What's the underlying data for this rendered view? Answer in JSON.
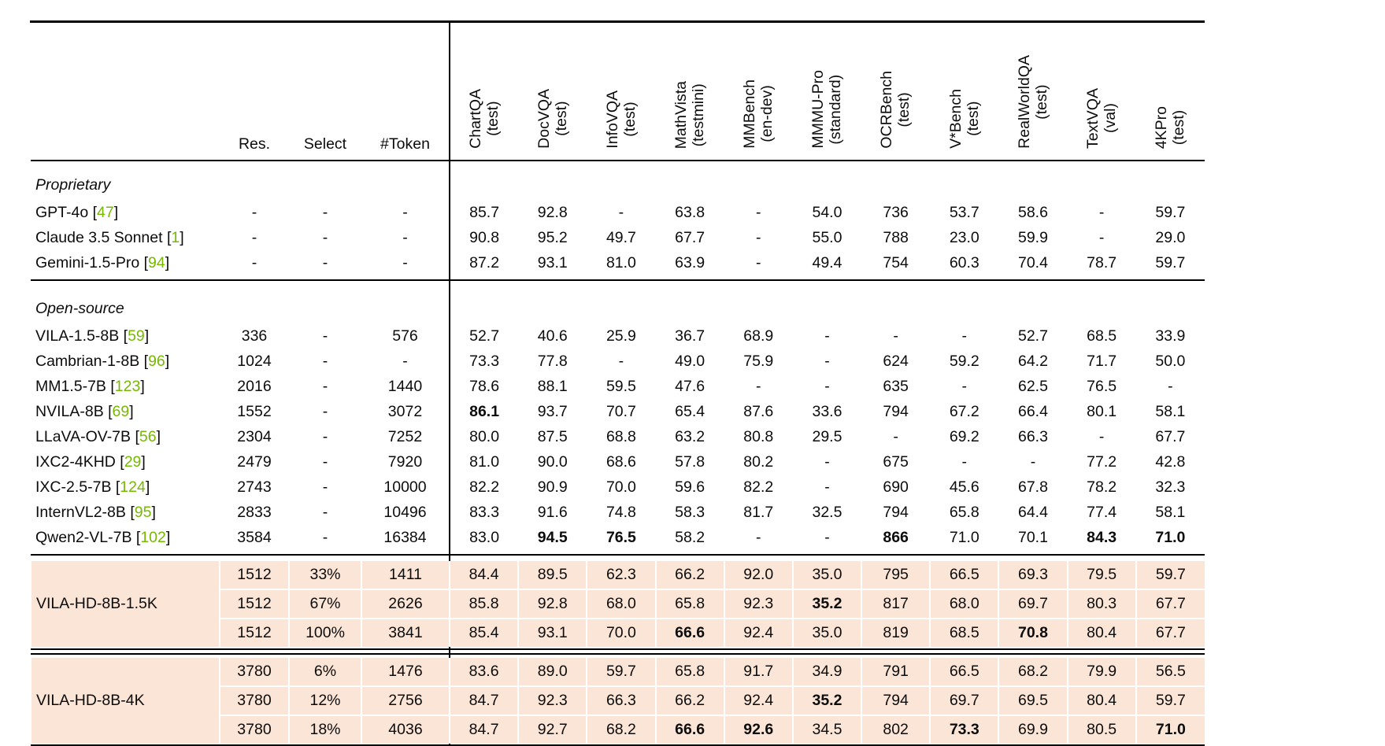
{
  "table": {
    "colors": {
      "citation_green": "#76b900",
      "row_highlight": "#fbe5d6"
    },
    "left_headers": [
      "Res.",
      "Select",
      "#Token"
    ],
    "benchmarks": [
      {
        "name": "ChartQA",
        "split": "(test)"
      },
      {
        "name": "DocVQA",
        "split": "(test)"
      },
      {
        "name": "InfoVQA",
        "split": "(test)"
      },
      {
        "name": "MathVista",
        "split": "(testmini)"
      },
      {
        "name": "MMBench",
        "split": "(en-dev)"
      },
      {
        "name": "MMMU-Pro",
        "split": "(standard)"
      },
      {
        "name": "OCRBench",
        "split": "(test)"
      },
      {
        "name": "V*Bench",
        "split": "(test)"
      },
      {
        "name": "RealWorldQA",
        "split": "(test)"
      },
      {
        "name": "TextVQA",
        "split": "(val)"
      },
      {
        "name": "4KPro",
        "split": "(test)"
      }
    ],
    "sections": [
      {
        "label": "Proprietary",
        "rows": [
          {
            "name": "GPT-4o",
            "ref": "47",
            "res": "-",
            "select": "-",
            "token": "-",
            "scores": [
              "85.7",
              "92.8",
              "-",
              "63.8",
              "-",
              "54.0",
              "736",
              "53.7",
              "58.6",
              "-",
              "59.7"
            ],
            "bold": []
          },
          {
            "name": "Claude 3.5 Sonnet",
            "ref": "1",
            "res": "-",
            "select": "-",
            "token": "-",
            "scores": [
              "90.8",
              "95.2",
              "49.7",
              "67.7",
              "-",
              "55.0",
              "788",
              "23.0",
              "59.9",
              "-",
              "29.0"
            ],
            "bold": []
          },
          {
            "name": "Gemini-1.5-Pro",
            "ref": "94",
            "res": "-",
            "select": "-",
            "token": "-",
            "scores": [
              "87.2",
              "93.1",
              "81.0",
              "63.9",
              "-",
              "49.4",
              "754",
              "60.3",
              "70.4",
              "78.7",
              "59.7"
            ],
            "bold": []
          }
        ]
      },
      {
        "label": "Open-source",
        "rows": [
          {
            "name": "VILA-1.5-8B",
            "ref": "59",
            "res": "336",
            "select": "-",
            "token": "576",
            "scores": [
              "52.7",
              "40.6",
              "25.9",
              "36.7",
              "68.9",
              "-",
              "-",
              "-",
              "52.7",
              "68.5",
              "33.9"
            ],
            "bold": []
          },
          {
            "name": "Cambrian-1-8B",
            "ref": "96",
            "res": "1024",
            "select": "-",
            "token": "-",
            "scores": [
              "73.3",
              "77.8",
              "-",
              "49.0",
              "75.9",
              "-",
              "624",
              "59.2",
              "64.2",
              "71.7",
              "50.0"
            ],
            "bold": []
          },
          {
            "name": "MM1.5-7B",
            "ref": "123",
            "res": "2016",
            "select": "-",
            "token": "1440",
            "scores": [
              "78.6",
              "88.1",
              "59.5",
              "47.6",
              "-",
              "-",
              "635",
              "-",
              "62.5",
              "76.5",
              "-"
            ],
            "bold": []
          },
          {
            "name": "NVILA-8B",
            "ref": "69",
            "res": "1552",
            "select": "-",
            "token": "3072",
            "scores": [
              "86.1",
              "93.7",
              "70.7",
              "65.4",
              "87.6",
              "33.6",
              "794",
              "67.2",
              "66.4",
              "80.1",
              "58.1"
            ],
            "bold": [
              0
            ]
          },
          {
            "name": "LLaVA-OV-7B",
            "ref": "56",
            "res": "2304",
            "select": "-",
            "token": "7252",
            "scores": [
              "80.0",
              "87.5",
              "68.8",
              "63.2",
              "80.8",
              "29.5",
              "-",
              "69.2",
              "66.3",
              "-",
              "67.7"
            ],
            "bold": []
          },
          {
            "name": "IXC2-4KHD",
            "ref": "29",
            "res": "2479",
            "select": "-",
            "token": "7920",
            "scores": [
              "81.0",
              "90.0",
              "68.6",
              "57.8",
              "80.2",
              "-",
              "675",
              "-",
              "-",
              "77.2",
              "42.8"
            ],
            "bold": []
          },
          {
            "name": "IXC-2.5-7B",
            "ref": "124",
            "res": "2743",
            "select": "-",
            "token": "10000",
            "scores": [
              "82.2",
              "90.9",
              "70.0",
              "59.6",
              "82.2",
              "-",
              "690",
              "45.6",
              "67.8",
              "78.2",
              "32.3"
            ],
            "bold": []
          },
          {
            "name": "InternVL2-8B",
            "ref": "95",
            "res": "2833",
            "select": "-",
            "token": "10496",
            "scores": [
              "83.3",
              "91.6",
              "74.8",
              "58.3",
              "81.7",
              "32.5",
              "794",
              "65.8",
              "64.4",
              "77.4",
              "58.1"
            ],
            "bold": []
          },
          {
            "name": "Qwen2-VL-7B",
            "ref": "102",
            "res": "3584",
            "select": "-",
            "token": "16384",
            "scores": [
              "83.0",
              "94.5",
              "76.5",
              "58.2",
              "-",
              "-",
              "866",
              "71.0",
              "70.1",
              "84.3",
              "71.0"
            ],
            "bold": [
              1,
              2,
              6,
              9,
              10
            ]
          }
        ]
      }
    ],
    "groups": [
      {
        "name": "VILA-HD-8B-1.5K",
        "rows": [
          {
            "res": "1512",
            "select": "33%",
            "token": "1411",
            "scores": [
              "84.4",
              "89.5",
              "62.3",
              "66.2",
              "92.0",
              "35.0",
              "795",
              "66.5",
              "69.3",
              "79.5",
              "59.7"
            ],
            "bold": []
          },
          {
            "res": "1512",
            "select": "67%",
            "token": "2626",
            "scores": [
              "85.8",
              "92.8",
              "68.0",
              "65.8",
              "92.3",
              "35.2",
              "817",
              "68.0",
              "69.7",
              "80.3",
              "67.7"
            ],
            "bold": [
              5
            ]
          },
          {
            "res": "1512",
            "select": "100%",
            "token": "3841",
            "scores": [
              "85.4",
              "93.1",
              "70.0",
              "66.6",
              "92.4",
              "35.0",
              "819",
              "68.5",
              "70.8",
              "80.4",
              "67.7"
            ],
            "bold": [
              3,
              8
            ]
          }
        ]
      },
      {
        "name": "VILA-HD-8B-4K",
        "rows": [
          {
            "res": "3780",
            "select": "6%",
            "token": "1476",
            "scores": [
              "83.6",
              "89.0",
              "59.7",
              "65.8",
              "91.7",
              "34.9",
              "791",
              "66.5",
              "68.2",
              "79.9",
              "56.5"
            ],
            "bold": []
          },
          {
            "res": "3780",
            "select": "12%",
            "token": "2756",
            "scores": [
              "84.7",
              "92.3",
              "66.3",
              "66.2",
              "92.4",
              "35.2",
              "794",
              "69.7",
              "69.5",
              "80.4",
              "59.7"
            ],
            "bold": [
              5
            ]
          },
          {
            "res": "3780",
            "select": "18%",
            "token": "4036",
            "scores": [
              "84.7",
              "92.7",
              "68.2",
              "66.6",
              "92.6",
              "34.5",
              "802",
              "73.3",
              "69.9",
              "80.5",
              "71.0"
            ],
            "bold": [
              3,
              4,
              7,
              10
            ]
          }
        ]
      }
    ]
  }
}
